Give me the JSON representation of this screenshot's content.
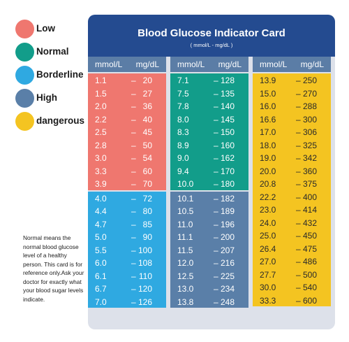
{
  "legend": [
    {
      "label": "Low",
      "color": "#ef776f"
    },
    {
      "label": "Normal",
      "color": "#129d8a"
    },
    {
      "label": "Borderline",
      "color": "#2fa9e1"
    },
    {
      "label": "High",
      "color": "#5a7fa8"
    },
    {
      "label": "dangerous",
      "color": "#f4c421"
    }
  ],
  "note": "Normal means the normal blood glucose level of a healthy person. This card is for reference only.Ask your doctor for exactly what your blood sugar levels indicate.",
  "card": {
    "title": "Blood Glucose Indicator Card",
    "subtitle": "( mmol/L - mg/dL )",
    "header_color": "#244b90",
    "col_head_color": "#5b7da6",
    "columns": [
      {
        "h1": "mmol/L",
        "h2": "mg/dL"
      },
      {
        "h1": "mmol/L",
        "h2": "mg/dL"
      },
      {
        "h1": "mmol/L",
        "h2": "mg/dL"
      }
    ],
    "dash": "–",
    "blocks": [
      {
        "column": 0,
        "level": "Low",
        "color": "#ef776f",
        "rows": [
          [
            "1.1",
            "20"
          ],
          [
            "1.5",
            "27"
          ],
          [
            "2.0",
            "36"
          ],
          [
            "2.2",
            "40"
          ],
          [
            "2.5",
            "45"
          ],
          [
            "2.8",
            "50"
          ],
          [
            "3.0",
            "54"
          ],
          [
            "3.3",
            "60"
          ],
          [
            "3.9",
            "70"
          ]
        ]
      },
      {
        "column": 0,
        "level": "Borderline",
        "color": "#2fa9e1",
        "rows": [
          [
            "4.0",
            "72"
          ],
          [
            "4.4",
            "80"
          ],
          [
            "4.7",
            "85"
          ],
          [
            "5.0",
            "90"
          ],
          [
            "5.5",
            "100"
          ],
          [
            "6.0",
            "108"
          ],
          [
            "6.1",
            "110"
          ],
          [
            "6.7",
            "120"
          ],
          [
            "7.0",
            "126"
          ]
        ]
      },
      {
        "column": 1,
        "level": "Normal",
        "color": "#129d8a",
        "rows": [
          [
            "7.1",
            "128"
          ],
          [
            "7.5",
            "135"
          ],
          [
            "7.8",
            "140"
          ],
          [
            "8.0",
            "145"
          ],
          [
            "8.3",
            "150"
          ],
          [
            "8.9",
            "160"
          ],
          [
            "9.0",
            "162"
          ],
          [
            "9.4",
            "170"
          ],
          [
            "10.0",
            "180"
          ]
        ]
      },
      {
        "column": 1,
        "level": "High",
        "color": "#5a7fa8",
        "rows": [
          [
            "10.1",
            "182"
          ],
          [
            "10.5",
            "189"
          ],
          [
            "11.0",
            "196"
          ],
          [
            "11.1",
            "200"
          ],
          [
            "11.5",
            "207"
          ],
          [
            "12.0",
            "216"
          ],
          [
            "12.5",
            "225"
          ],
          [
            "13.0",
            "234"
          ],
          [
            "13.8",
            "248"
          ]
        ]
      },
      {
        "column": 2,
        "level": "dangerous",
        "color": "#f4c421",
        "rows": [
          [
            "13.9",
            "250"
          ],
          [
            "15.0",
            "270"
          ],
          [
            "16.0",
            "288"
          ],
          [
            "16.6",
            "300"
          ],
          [
            "17.0",
            "306"
          ],
          [
            "18.0",
            "325"
          ],
          [
            "19.0",
            "342"
          ],
          [
            "20.0",
            "360"
          ],
          [
            "20.8",
            "375"
          ],
          [
            "22.2",
            "400"
          ],
          [
            "23.0",
            "414"
          ],
          [
            "24.0",
            "432"
          ],
          [
            "25.0",
            "450"
          ],
          [
            "26.4",
            "475"
          ],
          [
            "27.0",
            "486"
          ],
          [
            "27.7",
            "500"
          ],
          [
            "30.0",
            "540"
          ],
          [
            "33.3",
            "600"
          ]
        ]
      }
    ]
  }
}
